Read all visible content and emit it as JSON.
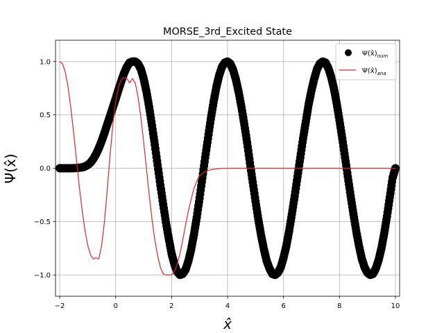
{
  "chart_data": {
    "type": "line",
    "title": "MORSE_3rd_Excited State",
    "xlabel": "x̂",
    "ylabel": "Ψ(x̂)",
    "xlim": [
      -2.15,
      10.15
    ],
    "ylim": [
      -1.2,
      1.2
    ],
    "xticks": [
      -2,
      0,
      2,
      4,
      6,
      8,
      10
    ],
    "yticks": [
      -1.0,
      -0.5,
      0.0,
      0.5,
      1.0
    ],
    "xtick_labels": [
      "−2",
      "0",
      "2",
      "4",
      "6",
      "8",
      "10"
    ],
    "ytick_labels": [
      "−1.0",
      "−0.5",
      "0.0",
      "0.5",
      "1.0"
    ],
    "grid": true,
    "legend_position": "top-right",
    "series": [
      {
        "name": "Ψ(x̂)num",
        "legend_main": "Ψ(x̂)",
        "legend_sub": "num",
        "style": "scatter",
        "color": "#000000",
        "x": [
          -2.0,
          -1.8,
          -1.6,
          -1.4,
          -1.2,
          -1.1,
          -1.0,
          -0.9,
          -0.8,
          -0.7,
          -0.6,
          -0.5,
          -0.4,
          -0.3,
          -0.2,
          -0.1,
          0.0,
          0.1,
          0.2,
          0.3,
          0.4,
          0.5,
          0.6,
          0.7,
          0.8,
          0.9,
          1.0,
          1.1,
          1.2,
          1.3,
          1.4,
          1.5,
          1.6,
          1.7,
          1.8,
          1.9,
          2.0,
          2.1,
          2.2,
          2.3,
          2.4,
          2.5,
          2.6,
          2.7,
          2.8,
          2.9,
          3.0,
          3.1,
          3.2,
          3.3,
          3.4,
          3.5,
          3.6,
          3.7,
          3.8,
          3.9,
          4.0,
          4.1,
          4.2,
          4.3,
          4.4,
          4.5,
          4.6,
          4.7,
          4.8,
          4.9,
          5.0,
          5.1,
          5.2,
          5.3,
          5.4,
          5.5,
          5.6,
          5.7,
          5.8,
          5.9,
          6.0,
          6.1,
          6.2,
          6.3,
          6.4,
          6.5,
          6.6,
          6.7,
          6.8,
          6.9,
          7.0,
          7.1,
          7.2,
          7.3,
          7.4,
          7.5,
          7.6,
          7.7,
          7.8,
          7.9,
          8.0,
          8.1,
          8.2,
          8.3,
          8.4,
          8.5,
          8.6,
          8.7,
          8.8,
          8.9,
          9.0,
          9.1,
          9.2,
          9.3,
          9.4,
          9.5,
          9.6,
          9.7,
          9.8,
          9.9,
          10.0
        ],
        "y": [
          0.0,
          0.0,
          0.0,
          0.002,
          0.008,
          0.016,
          0.03,
          0.052,
          0.086,
          0.132,
          0.188,
          0.255,
          0.33,
          0.41,
          0.49,
          0.57,
          0.65,
          0.735,
          0.815,
          0.89,
          0.95,
          0.99,
          1.0,
          1.0,
          0.98,
          0.93,
          0.84,
          0.72,
          0.57,
          0.4,
          0.22,
          0.03,
          -0.16,
          -0.34,
          -0.51,
          -0.66,
          -0.8,
          -0.9,
          -0.97,
          -1.0,
          -0.99,
          -0.95,
          -0.87,
          -0.76,
          -0.62,
          -0.46,
          -0.28,
          -0.09,
          0.1,
          0.28,
          0.46,
          0.62,
          0.76,
          0.87,
          0.95,
          0.99,
          1.0,
          0.98,
          0.92,
          0.83,
          0.71,
          0.57,
          0.41,
          0.24,
          0.05,
          -0.13,
          -0.31,
          -0.48,
          -0.63,
          -0.76,
          -0.87,
          -0.94,
          -0.99,
          -1.0,
          -0.98,
          -0.93,
          -0.84,
          -0.73,
          -0.59,
          -0.43,
          -0.26,
          -0.08,
          0.1,
          0.28,
          0.44,
          0.6,
          0.73,
          0.84,
          0.93,
          0.98,
          1.0,
          0.99,
          0.94,
          0.86,
          0.75,
          0.61,
          0.45,
          0.28,
          0.1,
          -0.08,
          -0.26,
          -0.43,
          -0.59,
          -0.73,
          -0.85,
          -0.93,
          -0.98,
          -1.0,
          -0.99,
          -0.94,
          -0.86,
          -0.75,
          -0.61,
          -0.45,
          -0.27,
          -0.09,
          0.0
        ]
      },
      {
        "name": "Ψ(x̂)ana",
        "legend_main": "Ψ(x̂)",
        "legend_sub": "ana",
        "style": "line",
        "color": "#d62728",
        "x": [
          -2.0,
          -1.9,
          -1.8,
          -1.7,
          -1.6,
          -1.5,
          -1.4,
          -1.3,
          -1.2,
          -1.1,
          -1.0,
          -0.9,
          -0.8,
          -0.7,
          -0.6,
          -0.5,
          -0.4,
          -0.3,
          -0.2,
          -0.1,
          0.0,
          0.1,
          0.2,
          0.3,
          0.4,
          0.5,
          0.6,
          0.7,
          0.8,
          0.9,
          1.0,
          1.1,
          1.2,
          1.3,
          1.4,
          1.5,
          1.6,
          1.7,
          1.8,
          1.9,
          2.0,
          2.1,
          2.2,
          2.3,
          2.4,
          2.5,
          2.6,
          2.7,
          2.8,
          2.9,
          3.0,
          3.2,
          3.4,
          3.6,
          3.8,
          4.0,
          4.2,
          4.4,
          4.6,
          4.8,
          5.0,
          6.0,
          7.0,
          8.0,
          9.0,
          10.0
        ],
        "y": [
          1.0,
          0.98,
          0.9,
          0.76,
          0.56,
          0.33,
          0.08,
          -0.17,
          -0.39,
          -0.58,
          -0.72,
          -0.81,
          -0.85,
          -0.84,
          -0.85,
          -0.72,
          -0.5,
          -0.2,
          0.12,
          0.41,
          0.62,
          0.76,
          0.83,
          0.85,
          0.84,
          0.8,
          0.84,
          0.8,
          0.67,
          0.48,
          0.25,
          0.0,
          -0.25,
          -0.48,
          -0.67,
          -0.82,
          -0.93,
          -0.99,
          -1.0,
          -1.0,
          -1.0,
          -0.97,
          -0.9,
          -0.8,
          -0.67,
          -0.53,
          -0.4,
          -0.29,
          -0.19,
          -0.12,
          -0.07,
          -0.03,
          -0.015,
          -0.006,
          -0.002,
          0.0,
          0.0,
          0.0,
          0.0,
          0.0,
          0.0,
          0.0,
          0.0,
          0.0,
          0.0,
          0.0
        ]
      }
    ]
  }
}
